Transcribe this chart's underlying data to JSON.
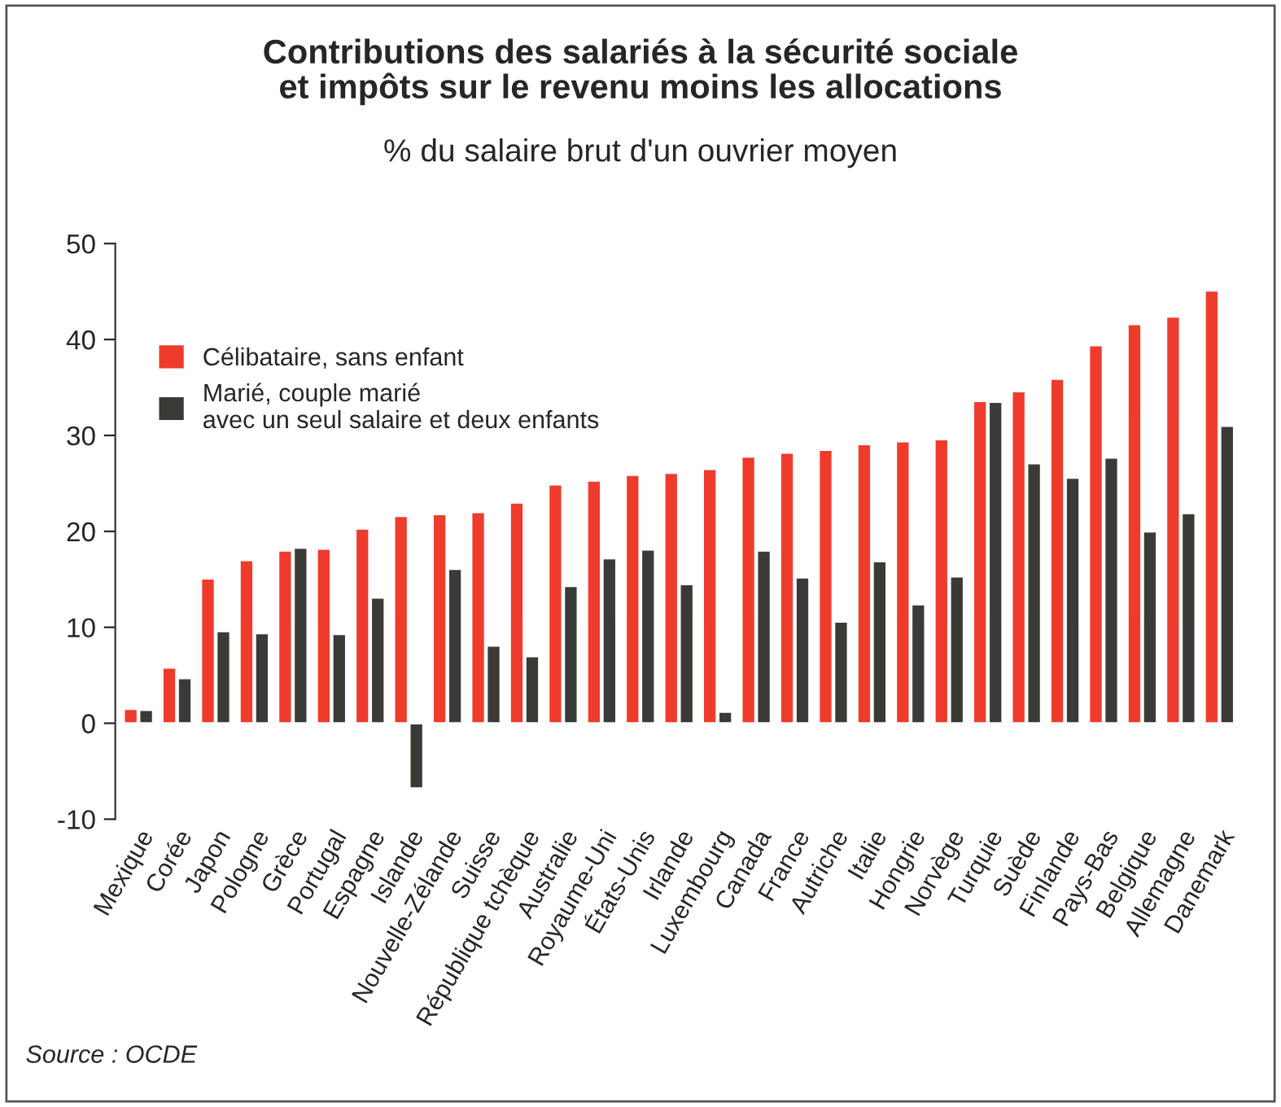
{
  "chart_data": {
    "type": "bar",
    "title": "Contributions des salariés à la sécurité sociale\net impôts sur le revenu moins les allocations",
    "subtitle": "% du salaire brut d'un ouvrier moyen",
    "categories": [
      "Mexique",
      "Corée",
      "Japon",
      "Pologne",
      "Grèce",
      "Portugal",
      "Espagne",
      "Islande",
      "Nouvelle-Zélande",
      "Suisse",
      "République tchèque",
      "Australie",
      "Royaume-Uni",
      "États-Unis",
      "Irlande",
      "Luxembourg",
      "Canada",
      "France",
      "Autriche",
      "Italie",
      "Hongrie",
      "Norvège",
      "Turquie",
      "Suède",
      "Finlande",
      "Pays-Bas",
      "Belgique",
      "Allemagne",
      "Danemark"
    ],
    "series": [
      {
        "name": "Célibataire, sans enfant",
        "color": "#ef3b2c",
        "values": [
          1.5,
          5.8,
          15.1,
          17.0,
          18.0,
          18.2,
          20.3,
          21.6,
          21.8,
          22.0,
          23.0,
          24.9,
          25.3,
          25.9,
          26.1,
          26.5,
          27.8,
          28.2,
          28.5,
          29.1,
          29.4,
          29.6,
          33.6,
          34.6,
          35.9,
          39.4,
          41.6,
          42.4,
          45.1
        ]
      },
      {
        "name": "Marié, couple marié\navec un seul salaire et deux enfants",
        "color": "#3a3a36",
        "values": [
          1.4,
          4.7,
          9.6,
          9.4,
          18.3,
          9.3,
          13.1,
          -6.8,
          16.1,
          8.1,
          7.0,
          14.3,
          17.2,
          18.1,
          14.5,
          1.2,
          18.0,
          15.2,
          10.6,
          16.9,
          12.4,
          15.3,
          33.5,
          27.1,
          25.6,
          27.7,
          20.0,
          21.9,
          31.0
        ]
      }
    ],
    "ylim": [
      -10,
      50
    ],
    "yticks": [
      -10,
      0,
      10,
      20,
      30,
      40,
      50
    ],
    "legend": "top left",
    "grid": false,
    "annotations": [
      "Source : OCDE"
    ]
  }
}
